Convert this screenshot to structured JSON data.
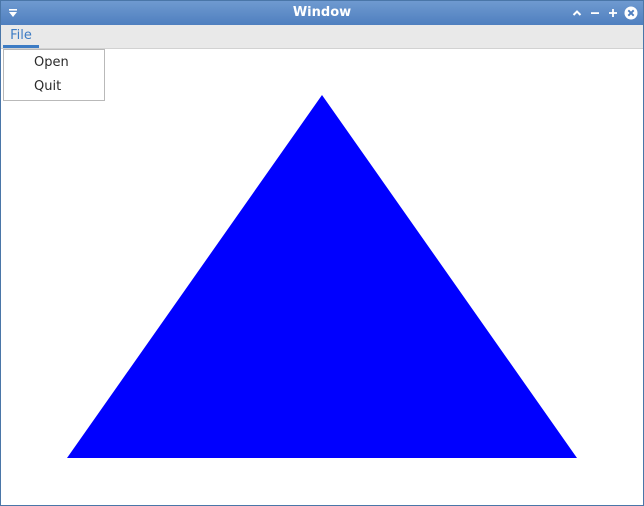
{
  "window": {
    "title": "Window"
  },
  "titlebar": {
    "icons": [
      "window-menu-icon",
      "shade-icon",
      "minimize-icon",
      "maximize-icon",
      "close-icon"
    ]
  },
  "menubar": {
    "file_label": "File",
    "file_menu": {
      "open_label": "Open",
      "quit_label": "Quit"
    }
  },
  "canvas": {
    "shape": "triangle",
    "fill_color": "#0000ff"
  },
  "colors": {
    "titlebar": "#5a88c6",
    "accent": "#3d7cc4",
    "menubar": "#e9e9e9",
    "canvas_bg": "#ffffff"
  }
}
